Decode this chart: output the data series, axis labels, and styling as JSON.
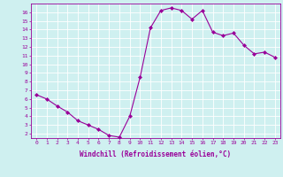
{
  "x": [
    0,
    1,
    2,
    3,
    4,
    5,
    6,
    7,
    8,
    9,
    10,
    11,
    12,
    13,
    14,
    15,
    16,
    17,
    18,
    19,
    20,
    21,
    22,
    23
  ],
  "y": [
    6.5,
    6.0,
    5.2,
    4.5,
    3.5,
    3.0,
    2.5,
    1.8,
    1.6,
    4.0,
    8.5,
    14.2,
    16.2,
    16.5,
    16.2,
    15.2,
    16.2,
    13.7,
    13.3,
    13.6,
    12.2,
    11.2,
    11.4,
    10.8
  ],
  "line_color": "#990099",
  "marker": "D",
  "marker_size": 2.0,
  "bg_color": "#cff0f0",
  "grid_color": "#ffffff",
  "xlabel": "Windchill (Refroidissement éolien,°C)",
  "xlim": [
    -0.5,
    23.5
  ],
  "ylim": [
    1.5,
    17.0
  ],
  "yticks": [
    2,
    3,
    4,
    5,
    6,
    7,
    8,
    9,
    10,
    11,
    12,
    13,
    14,
    15,
    16
  ],
  "xticks": [
    0,
    1,
    2,
    3,
    4,
    5,
    6,
    7,
    8,
    9,
    10,
    11,
    12,
    13,
    14,
    15,
    16,
    17,
    18,
    19,
    20,
    21,
    22,
    23
  ],
  "tick_color": "#990099",
  "label_color": "#990099",
  "spine_color": "#990099",
  "tick_fontsize": 4.5,
  "xlabel_fontsize": 5.5
}
